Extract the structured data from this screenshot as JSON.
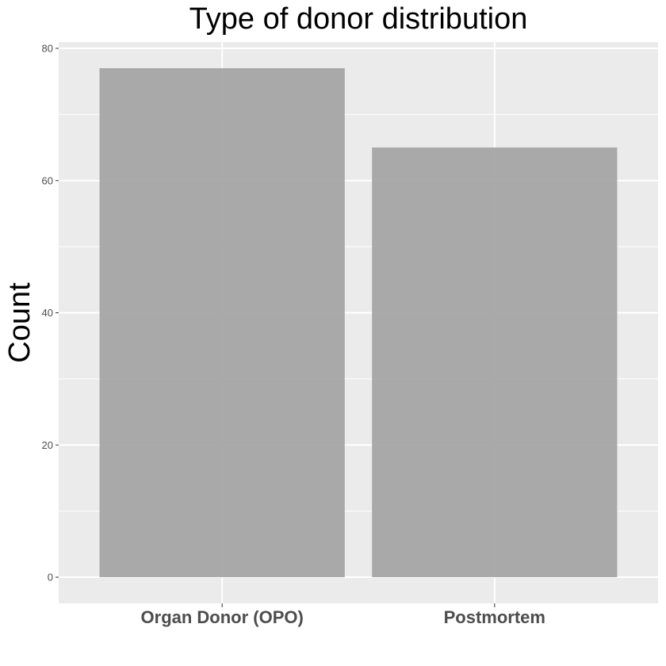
{
  "chart_data": {
    "type": "bar",
    "title": "Type of donor distribution",
    "xlabel": "",
    "ylabel": "Count",
    "categories": [
      "Organ Donor (OPO)",
      "Postmortem"
    ],
    "values": [
      77,
      65
    ],
    "ylim": [
      0,
      80
    ],
    "yticks": [
      0,
      20,
      40,
      60,
      80
    ],
    "grid": true,
    "legend": "none",
    "colors": {
      "bar": "#a3a3a3",
      "panel": "#ebebeb",
      "grid": "#ffffff",
      "tick": "#333333",
      "tick_label": "#4d4d4d"
    }
  }
}
